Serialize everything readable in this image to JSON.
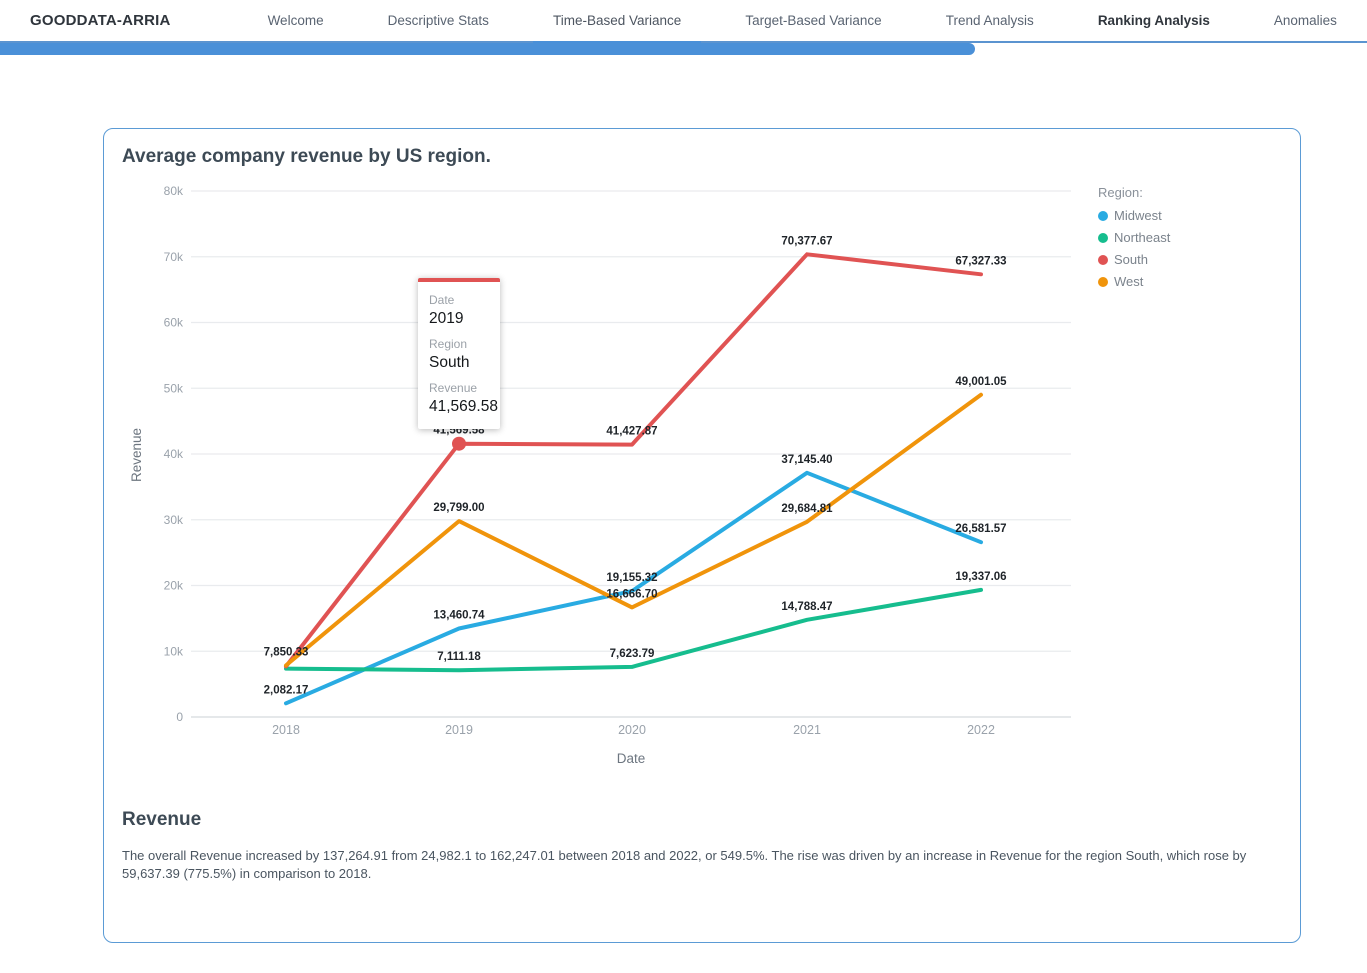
{
  "accent": "#4a90d8",
  "nav": {
    "brand": "GOODDATA-ARRIA",
    "items": [
      {
        "label": "Welcome",
        "active": false,
        "bold": false
      },
      {
        "label": "Descriptive Stats",
        "active": false,
        "bold": false
      },
      {
        "label": "Time-Based Variance",
        "active": true,
        "bold": false
      },
      {
        "label": "Target-Based Variance",
        "active": false,
        "bold": false
      },
      {
        "label": "Trend Analysis",
        "active": false,
        "bold": false
      },
      {
        "label": "Ranking Analysis",
        "active": false,
        "bold": true
      },
      {
        "label": "Anomalies",
        "active": false,
        "bold": false
      }
    ]
  },
  "card": {
    "title": "Average company revenue by US region."
  },
  "chart_data": {
    "type": "line",
    "title": "Average company revenue by US region.",
    "xlabel": "Date",
    "ylabel": "Revenue",
    "categories": [
      "2018",
      "2019",
      "2020",
      "2021",
      "2022"
    ],
    "ylim": [
      0,
      80000
    ],
    "ytick_step": 10000,
    "ytick_labels": [
      "0",
      "10k",
      "20k",
      "30k",
      "40k",
      "50k",
      "60k",
      "70k",
      "80k"
    ],
    "grid": true,
    "legend_title": "Region:",
    "legend_position": "right",
    "series": [
      {
        "name": "Midwest",
        "color": "#29abe2",
        "values": [
          2082.17,
          13460.74,
          19155.32,
          37145.4,
          26581.57
        ],
        "show_label": [
          true,
          true,
          true,
          true,
          true
        ]
      },
      {
        "name": "Northeast",
        "color": "#16bd8e",
        "values": [
          7359.66,
          7111.18,
          7623.79,
          14788.47,
          19337.06
        ],
        "show_label": [
          false,
          true,
          true,
          true,
          true
        ]
      },
      {
        "name": "South",
        "color": "#e05353",
        "values": [
          7689.94,
          41569.58,
          41427.87,
          70377.67,
          67327.33
        ],
        "show_label": [
          false,
          true,
          true,
          true,
          true
        ]
      },
      {
        "name": "West",
        "color": "#f0940b",
        "values": [
          7850.33,
          29799.0,
          16666.7,
          29684.81,
          49001.05
        ],
        "show_label": [
          true,
          true,
          true,
          true,
          true
        ]
      }
    ],
    "highlight_point": {
      "series": "South",
      "category": "2019"
    }
  },
  "tooltip": {
    "rows": [
      {
        "label": "Date",
        "value": "2019"
      },
      {
        "label": "Region",
        "value": "South"
      },
      {
        "label": "Revenue",
        "value": "41,569.58"
      }
    ]
  },
  "summary": {
    "heading": "Revenue",
    "text": "The overall Revenue increased by 137,264.91 from 24,982.1 to 162,247.01 between 2018 and 2022, or 549.5%. The rise was driven by an increase in Revenue for the region South, which rose by 59,637.39 (775.5%) in comparison to 2018."
  }
}
